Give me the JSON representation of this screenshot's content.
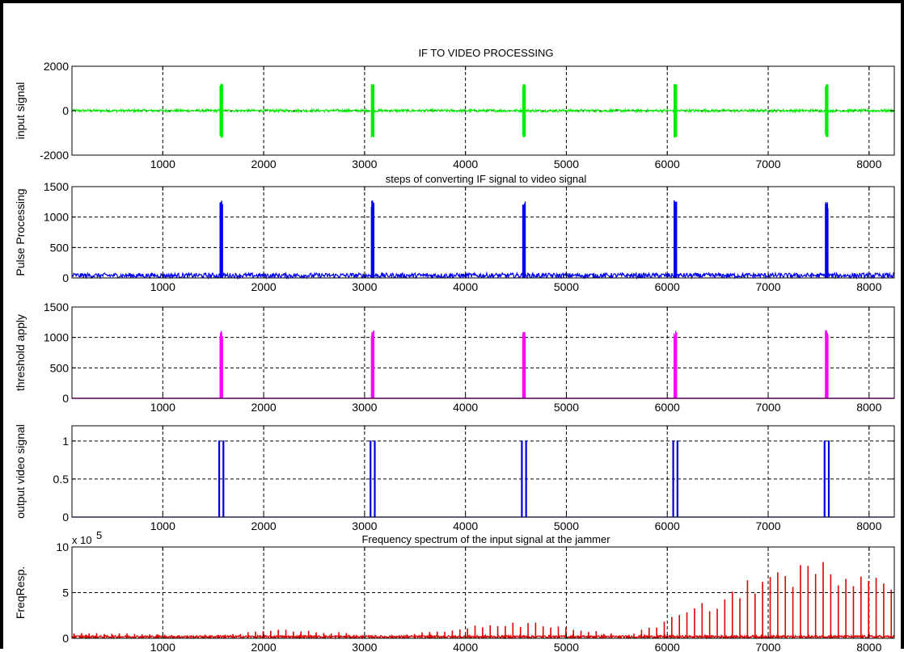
{
  "figure": {
    "title": "IF TO VIDEO PROCESSING"
  },
  "chart_data": [
    {
      "type": "line",
      "title": "IF TO VIDEO PROCESSING",
      "ylabel": "input signal",
      "xlim": [
        100,
        8250
      ],
      "ylim": [
        -2000,
        2000
      ],
      "xticks": [
        1000,
        2000,
        3000,
        4000,
        5000,
        6000,
        7000,
        8000
      ],
      "yticks": [
        -2000,
        0,
        2000
      ],
      "grid": true,
      "color": "#00ee00",
      "signal": {
        "kind": "bipolar_pulses",
        "baseline": 0,
        "noise": 60,
        "pulse_centers": [
          1580,
          3080,
          4580,
          6080,
          7580
        ],
        "pulse_amplitude": 1200
      }
    },
    {
      "type": "line",
      "title": "steps of converting IF signal to video signal",
      "ylabel": "Pulse Processing",
      "xlim": [
        100,
        8250
      ],
      "ylim": [
        0,
        1500
      ],
      "xticks": [
        1000,
        2000,
        3000,
        4000,
        5000,
        6000,
        7000,
        8000
      ],
      "yticks": [
        0,
        500,
        1000,
        1500
      ],
      "grid": true,
      "color": "#0000ee",
      "signal": {
        "kind": "positive_pulses",
        "baseline": 0,
        "noise": 80,
        "pulse_centers": [
          1580,
          3080,
          4580,
          6080,
          7580
        ],
        "pulse_amplitude": 1250
      }
    },
    {
      "type": "line",
      "title": "",
      "ylabel": "threshold apply",
      "xlim": [
        100,
        8250
      ],
      "ylim": [
        0,
        1500
      ],
      "xticks": [
        1000,
        2000,
        3000,
        4000,
        5000,
        6000,
        7000,
        8000
      ],
      "yticks": [
        0,
        500,
        1000,
        1500
      ],
      "grid": true,
      "color": "#ff00ff",
      "signal": {
        "kind": "positive_pulses",
        "baseline": 0,
        "noise": 0,
        "pulse_centers": [
          1580,
          3080,
          4580,
          6080,
          7580
        ],
        "pulse_amplitude": 1100
      }
    },
    {
      "type": "line",
      "title": "",
      "ylabel": "output video signal",
      "xlim": [
        100,
        8250
      ],
      "ylim": [
        0,
        1.2
      ],
      "xticks": [
        1000,
        2000,
        3000,
        4000,
        5000,
        6000,
        7000,
        8000
      ],
      "yticks": [
        0,
        0.5,
        1
      ],
      "grid": true,
      "color": "#0000dd",
      "signal": {
        "kind": "rect_pulses",
        "baseline": 0,
        "level": 1,
        "pulse_centers": [
          1580,
          3080,
          4580,
          6080,
          7580
        ],
        "pulse_width": 50
      }
    },
    {
      "type": "line",
      "title": "Frequency spectrum of the input signal at the jammer",
      "ylabel": "FreqResp.",
      "y_exponent": "x 10",
      "y_exponent_power": "5",
      "xlim": [
        100,
        8250
      ],
      "ylim": [
        0,
        10
      ],
      "xticks": [
        1000,
        2000,
        3000,
        4000,
        5000,
        6000,
        7000,
        8000
      ],
      "yticks": [
        0,
        5,
        10
      ],
      "grid": true,
      "color": "#dd0000",
      "signal": {
        "kind": "spectrum",
        "line_spacing": 75,
        "envelope": [
          [
            100,
            0.6
          ],
          [
            800,
            0.5
          ],
          [
            1200,
            0.15
          ],
          [
            1600,
            0.4
          ],
          [
            2200,
            0.9
          ],
          [
            2800,
            0.6
          ],
          [
            3100,
            0.05
          ],
          [
            3500,
            0.5
          ],
          [
            4200,
            1.5
          ],
          [
            4700,
            1.6
          ],
          [
            5200,
            0.9
          ],
          [
            5600,
            0.2
          ],
          [
            6000,
            2.0
          ],
          [
            6500,
            4.2
          ],
          [
            7000,
            7.0
          ],
          [
            7500,
            7.8
          ],
          [
            8000,
            7.4
          ],
          [
            8250,
            7.0
          ]
        ]
      }
    }
  ]
}
